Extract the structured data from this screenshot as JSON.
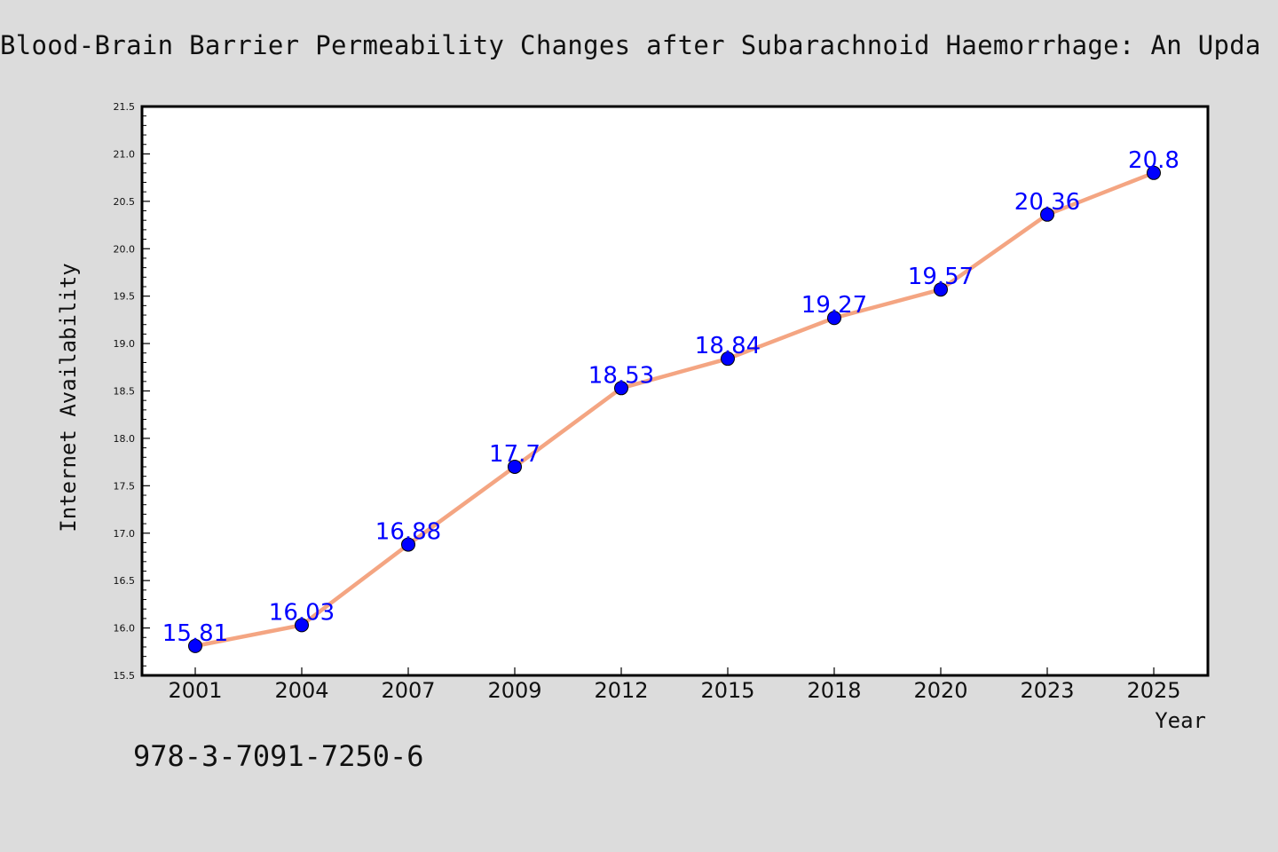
{
  "title": "Blood-Brain Barrier Permeability Changes after Subarachnoid Haemorrhage: An Upda",
  "footer_text": "978-3-7091-7250-6",
  "colors": {
    "background": "#dcdcdc",
    "plot_background": "#ffffff",
    "line": "#f4a582",
    "marker": "#0000ff",
    "data_label": "#0000ff"
  },
  "chart_data": {
    "type": "line",
    "xlabel": "Year",
    "ylabel": "Internet Availability",
    "categories": [
      "2001",
      "2004",
      "2007",
      "2009",
      "2012",
      "2015",
      "2018",
      "2020",
      "2023",
      "2025"
    ],
    "series": [
      {
        "values": [
          15.81,
          16.03,
          16.88,
          17.7,
          18.53,
          18.84,
          19.27,
          19.57,
          20.36,
          20.8
        ]
      }
    ],
    "ylim": [
      15.5,
      21.5
    ],
    "yticks": [
      "15.5",
      "16.0",
      "16.5",
      "17.0",
      "17.5",
      "18.0",
      "18.5",
      "19.0",
      "19.5",
      "20.0",
      "20.5",
      "21.0",
      "21.5"
    ],
    "data_labels": [
      "15.81",
      "16.03",
      "16.88",
      "17.7",
      "18.53",
      "18.84",
      "19.27",
      "19.57",
      "20.36",
      "20.8"
    ],
    "grid": false,
    "legend": "none"
  }
}
